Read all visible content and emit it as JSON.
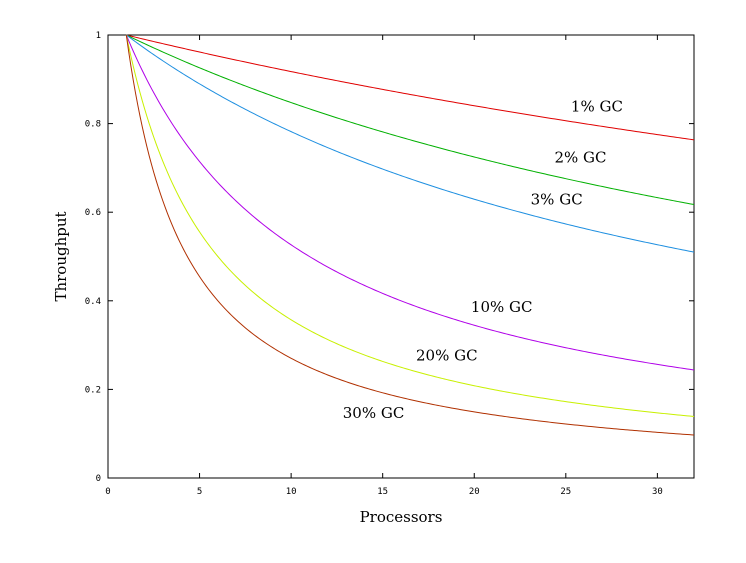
{
  "chart_data": {
    "type": "line",
    "title": "",
    "xlabel": "Processors",
    "ylabel": "Throughput",
    "xlim": [
      0,
      32
    ],
    "ylim": [
      0,
      1
    ],
    "xticks": [
      0,
      5,
      10,
      15,
      20,
      25,
      30
    ],
    "xtick_labels": [
      "0",
      "5",
      "10",
      "15",
      "20",
      "25",
      "30"
    ],
    "yticks": [
      0,
      0.2,
      0.4,
      0.6,
      0.8,
      1
    ],
    "ytick_labels": [
      "0",
      "0.2",
      "0.4",
      "0.6",
      "0.8",
      "1"
    ],
    "grid": false,
    "series": [
      {
        "name": "1% GC",
        "gc_fraction": 0.01,
        "color": "#e00000",
        "x": [
          1,
          2,
          4,
          8,
          12,
          16,
          20,
          24,
          28,
          32
        ],
        "y": [
          1.0,
          0.99,
          0.971,
          0.934,
          0.9,
          0.869,
          0.84,
          0.813,
          0.788,
          0.764
        ],
        "label_at": [
          26.7,
          0.827
        ]
      },
      {
        "name": "2% GC",
        "gc_fraction": 0.02,
        "color": "#00b000",
        "x": [
          1,
          2,
          4,
          8,
          12,
          16,
          20,
          24,
          28,
          32
        ],
        "y": [
          1.0,
          0.98,
          0.943,
          0.877,
          0.82,
          0.769,
          0.725,
          0.685,
          0.65,
          0.618
        ],
        "label_at": [
          25.8,
          0.712
        ]
      },
      {
        "name": "3% GC",
        "gc_fraction": 0.031,
        "color": "#1e8fe0",
        "x": [
          1,
          2,
          4,
          8,
          12,
          16,
          20,
          24,
          28,
          32
        ],
        "y": [
          1.0,
          0.97,
          0.915,
          0.823,
          0.747,
          0.683,
          0.63,
          0.584,
          0.545,
          0.51
        ],
        "label_at": [
          24.5,
          0.617
        ]
      },
      {
        "name": "10% GC",
        "gc_fraction": 0.1,
        "color": "#b000e8",
        "x": [
          1,
          2,
          4,
          8,
          12,
          16,
          20,
          24,
          28,
          32
        ],
        "y": [
          1.0,
          0.909,
          0.769,
          0.588,
          0.476,
          0.4,
          0.345,
          0.303,
          0.27,
          0.244
        ],
        "label_at": [
          21.5,
          0.375
        ]
      },
      {
        "name": "20% GC",
        "gc_fraction": 0.2,
        "color": "#c8f000",
        "x": [
          1,
          2,
          4,
          8,
          12,
          16,
          20,
          24,
          28,
          32
        ],
        "y": [
          1.0,
          0.833,
          0.625,
          0.417,
          0.313,
          0.25,
          0.208,
          0.179,
          0.156,
          0.139
        ],
        "label_at": [
          18.5,
          0.265
        ]
      },
      {
        "name": "30% GC",
        "gc_fraction": 0.3,
        "color": "#b03000",
        "x": [
          1,
          2,
          4,
          8,
          12,
          16,
          20,
          24,
          28,
          32
        ],
        "y": [
          1.0,
          0.769,
          0.526,
          0.323,
          0.233,
          0.182,
          0.149,
          0.127,
          0.11,
          0.097
        ],
        "label_at": [
          14.5,
          0.135
        ]
      }
    ]
  }
}
